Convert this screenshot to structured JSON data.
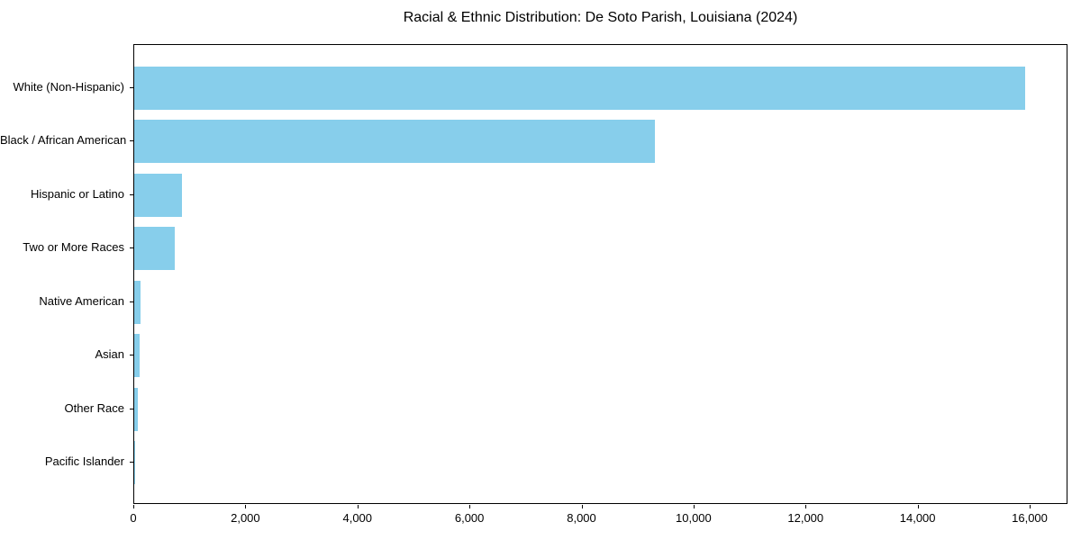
{
  "chart_data": {
    "type": "bar",
    "orientation": "horizontal",
    "title": "Racial & Ethnic Distribution: De Soto Parish, Louisiana (2024)",
    "categories": [
      "White (Non-Hispanic)",
      "Black / African American",
      "Hispanic or Latino",
      "Two or More Races",
      "Native American",
      "Asian",
      "Other Race",
      "Pacific Islander"
    ],
    "values": [
      15900,
      9300,
      850,
      730,
      120,
      100,
      60,
      10
    ],
    "xlabel": "",
    "ylabel": "",
    "xlim": [
      0,
      16675
    ],
    "xticks": [
      0,
      2000,
      4000,
      6000,
      8000,
      10000,
      12000,
      14000,
      16000
    ],
    "xtick_labels": [
      "0",
      "2,000",
      "4,000",
      "6,000",
      "8,000",
      "10,000",
      "12,000",
      "14,000",
      "16,000"
    ],
    "bar_color": "#87CEEB",
    "axis_color": "#000000",
    "text_color": "#000000",
    "grid": false,
    "legend": false
  }
}
